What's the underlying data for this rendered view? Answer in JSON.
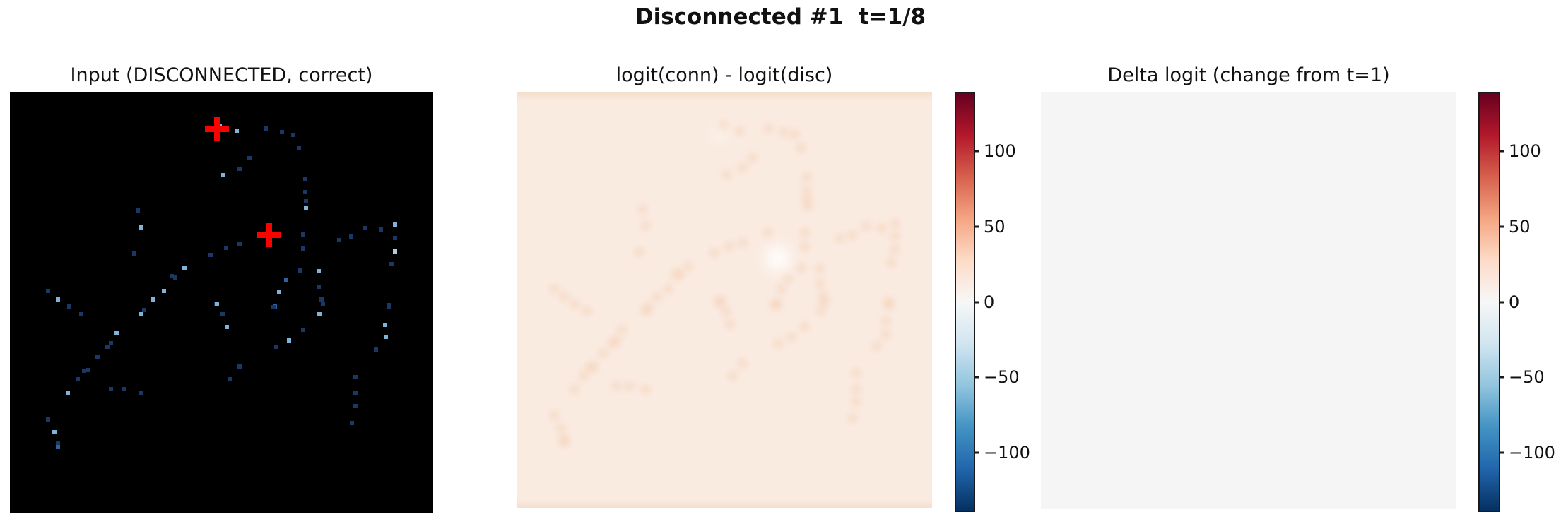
{
  "figure": {
    "suptitle": "Disconnected #1  t=1/8",
    "background": "#ffffff"
  },
  "panels": {
    "input": {
      "title": "Input (DISCONNECTED, correct)"
    },
    "logit_diff": {
      "title": "logit(conn) - logit(disc)"
    },
    "delta_logit": {
      "title": "Delta logit (change from t=1)"
    }
  },
  "colorbar": {
    "vmin": -138,
    "vmax": 138,
    "ticks": [
      {
        "label": "100",
        "value": 100,
        "pos_pct": 13.8
      },
      {
        "label": "50",
        "value": 50,
        "pos_pct": 31.9
      },
      {
        "label": "0",
        "value": 0,
        "pos_pct": 50.0
      },
      {
        "label": "−50",
        "value": -50,
        "pos_pct": 68.1
      },
      {
        "label": "−100",
        "value": -100,
        "pos_pct": 86.2
      }
    ],
    "gradient_top_to_bottom": [
      "#67001f",
      "#b2182b",
      "#d6604d",
      "#f4a582",
      "#fddbc7",
      "#f7f7f7",
      "#d1e5f0",
      "#92c5de",
      "#4393c3",
      "#2166ac",
      "#053061"
    ]
  },
  "colors": {
    "dot_dark": "#1b3765",
    "dot_med": "#2e619f",
    "dot_light": "#7fb3d8",
    "dot_bright": "#a9cfe9",
    "marker_red": "#f50400",
    "mid_bg": "#faebe1",
    "mid_trace": "#f5d3bb",
    "right_bg": "#f5f5f6"
  },
  "chart_data": [
    {
      "type": "scatter",
      "title": "Input (DISCONNECTED, correct)",
      "background": "black",
      "coords": "percent_of_panel_from_top_left",
      "points": [
        {
          "x": 53.6,
          "y": 9.4,
          "c": "l"
        },
        {
          "x": 49.6,
          "y": 8.0,
          "c": "l"
        },
        {
          "x": 60.5,
          "y": 8.7,
          "c": "d"
        },
        {
          "x": 64.3,
          "y": 9.6,
          "c": "d"
        },
        {
          "x": 66.9,
          "y": 10.2,
          "c": "d"
        },
        {
          "x": 68.3,
          "y": 13.4,
          "c": "d"
        },
        {
          "x": 56.6,
          "y": 15.8,
          "c": "d"
        },
        {
          "x": 54.3,
          "y": 18.2,
          "c": "d"
        },
        {
          "x": 50.5,
          "y": 19.8,
          "c": "l"
        },
        {
          "x": 69.8,
          "y": 20.6,
          "c": "d"
        },
        {
          "x": 69.8,
          "y": 23.8,
          "c": "d"
        },
        {
          "x": 69.9,
          "y": 25.9,
          "c": "d"
        },
        {
          "x": 69.9,
          "y": 27.4,
          "c": "l"
        },
        {
          "x": 30.2,
          "y": 28.2,
          "c": "d"
        },
        {
          "x": 30.9,
          "y": 32.1,
          "c": "l"
        },
        {
          "x": 84.0,
          "y": 32.3,
          "c": "d"
        },
        {
          "x": 87.7,
          "y": 32.7,
          "c": "d"
        },
        {
          "x": 91.0,
          "y": 31.5,
          "c": "l"
        },
        {
          "x": 91.0,
          "y": 34.7,
          "c": "d"
        },
        {
          "x": 80.6,
          "y": 34.4,
          "c": "d"
        },
        {
          "x": 77.8,
          "y": 35.1,
          "c": "d"
        },
        {
          "x": 69.2,
          "y": 33.8,
          "c": "d"
        },
        {
          "x": 60.4,
          "y": 33.8,
          "c": "l"
        },
        {
          "x": 54.3,
          "y": 36.2,
          "c": "d"
        },
        {
          "x": 69.2,
          "y": 37.2,
          "c": "d"
        },
        {
          "x": 51.1,
          "y": 37.0,
          "c": "d"
        },
        {
          "x": 47.4,
          "y": 38.7,
          "c": "d"
        },
        {
          "x": 29.4,
          "y": 38.4,
          "c": "d"
        },
        {
          "x": 91.0,
          "y": 37.8,
          "c": "b"
        },
        {
          "x": 90.2,
          "y": 40.9,
          "c": "d"
        },
        {
          "x": 41.2,
          "y": 41.9,
          "c": "l"
        },
        {
          "x": 38.2,
          "y": 43.7,
          "c": "d"
        },
        {
          "x": 39.1,
          "y": 44.0,
          "c": "d"
        },
        {
          "x": 68.4,
          "y": 42.3,
          "c": "d"
        },
        {
          "x": 73.0,
          "y": 42.5,
          "c": "l"
        },
        {
          "x": 65.2,
          "y": 44.8,
          "c": "m"
        },
        {
          "x": 72.9,
          "y": 46.2,
          "c": "d"
        },
        {
          "x": 9.0,
          "y": 47.3,
          "c": "d"
        },
        {
          "x": 63.6,
          "y": 47.6,
          "c": "l"
        },
        {
          "x": 36.4,
          "y": 47.3,
          "c": "l"
        },
        {
          "x": 33.7,
          "y": 49.3,
          "c": "l"
        },
        {
          "x": 11.4,
          "y": 49.2,
          "c": "l"
        },
        {
          "x": 62.6,
          "y": 51.0,
          "c": "m"
        },
        {
          "x": 48.7,
          "y": 50.3,
          "c": "d"
        },
        {
          "x": 73.6,
          "y": 49.3,
          "c": "d"
        },
        {
          "x": 14.0,
          "y": 51.0,
          "c": "d"
        },
        {
          "x": 16.9,
          "y": 52.7,
          "c": "d"
        },
        {
          "x": 30.9,
          "y": 52.7,
          "c": "l"
        },
        {
          "x": 31.7,
          "y": 51.8,
          "c": "d"
        },
        {
          "x": 48.9,
          "y": 50.5,
          "c": "l"
        },
        {
          "x": 50.3,
          "y": 52.8,
          "c": "d"
        },
        {
          "x": 51.2,
          "y": 55.8,
          "c": "l"
        },
        {
          "x": 62.2,
          "y": 51.1,
          "c": "d"
        },
        {
          "x": 73.1,
          "y": 52.7,
          "c": "l"
        },
        {
          "x": 74.0,
          "y": 50.4,
          "c": "d"
        },
        {
          "x": 69.3,
          "y": 56.4,
          "c": "d"
        },
        {
          "x": 66.0,
          "y": 58.9,
          "c": "l"
        },
        {
          "x": 62.9,
          "y": 60.5,
          "c": "d"
        },
        {
          "x": 89.5,
          "y": 51.1,
          "c": "d"
        },
        {
          "x": 88.7,
          "y": 55.2,
          "c": "l"
        },
        {
          "x": 88.8,
          "y": 58.2,
          "c": "l"
        },
        {
          "x": 86.5,
          "y": 61.2,
          "c": "d"
        },
        {
          "x": 89.5,
          "y": 50.6,
          "c": "d"
        },
        {
          "x": 25.2,
          "y": 57.3,
          "c": "l"
        },
        {
          "x": 23.9,
          "y": 59.7,
          "c": "d"
        },
        {
          "x": 23.0,
          "y": 60.4,
          "c": "d"
        },
        {
          "x": 20.7,
          "y": 62.9,
          "c": "d"
        },
        {
          "x": 18.5,
          "y": 66.0,
          "c": "d"
        },
        {
          "x": 17.6,
          "y": 66.2,
          "c": "d"
        },
        {
          "x": 16.0,
          "y": 68.2,
          "c": "d"
        },
        {
          "x": 13.7,
          "y": 71.5,
          "c": "l"
        },
        {
          "x": 23.9,
          "y": 70.6,
          "c": "d"
        },
        {
          "x": 27.0,
          "y": 70.6,
          "c": "d"
        },
        {
          "x": 30.9,
          "y": 71.5,
          "c": "d"
        },
        {
          "x": 54.3,
          "y": 65.2,
          "c": "d"
        },
        {
          "x": 51.9,
          "y": 68.2,
          "c": "d"
        },
        {
          "x": 81.6,
          "y": 67.6,
          "c": "d"
        },
        {
          "x": 81.6,
          "y": 71.5,
          "c": "d"
        },
        {
          "x": 81.6,
          "y": 74.6,
          "c": "d"
        },
        {
          "x": 80.8,
          "y": 78.5,
          "c": "d"
        },
        {
          "x": 9.0,
          "y": 77.7,
          "c": "d"
        },
        {
          "x": 10.5,
          "y": 80.8,
          "c": "l"
        },
        {
          "x": 11.4,
          "y": 83.3,
          "c": "d"
        },
        {
          "x": 11.4,
          "y": 84.2,
          "c": "m"
        }
      ],
      "markers": [
        {
          "type": "plus",
          "color": "red",
          "x": 48.9,
          "y": 8.8
        },
        {
          "type": "plus",
          "color": "red",
          "x": 61.3,
          "y": 34.0
        }
      ]
    },
    {
      "type": "heatmap",
      "title": "logit(conn) - logit(disc)",
      "colormap": "RdBu_r",
      "vmin": -138,
      "vmax": 138,
      "colorbar_ticks": [
        100,
        50,
        0,
        -50,
        -100
      ],
      "background_value_approx": 8,
      "trace_value_approx": 22,
      "summary": "Near-uniform faint positive field (pale peach ~+8) with slightly stronger salmon traces following the input path pattern; small whitish spot near the lower probe location.",
      "highlights": [
        {
          "x": 63.0,
          "y": 40.0,
          "r": 36,
          "color": "#ffffff",
          "opacity": 0.85
        },
        {
          "x": 49.0,
          "y": 10.0,
          "r": 22,
          "color": "#ffffff",
          "opacity": 0.35
        }
      ]
    },
    {
      "type": "heatmap",
      "title": "Delta logit (change from t=1)",
      "colormap": "RdBu_r",
      "vmin": -138,
      "vmax": 138,
      "colorbar_ticks": [
        100,
        50,
        0,
        -50,
        -100
      ],
      "background_value_approx": 0,
      "summary": "Uniform near-zero field (flat light gray), i.e. no change from t=1."
    }
  ]
}
